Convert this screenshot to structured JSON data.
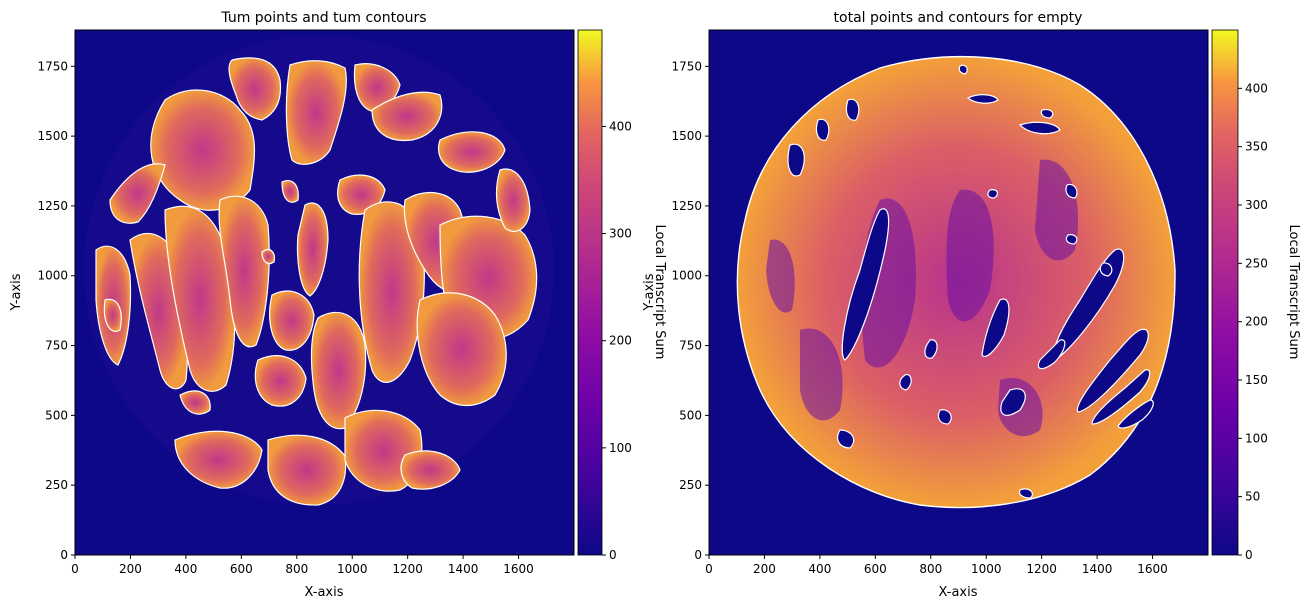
{
  "chart_data": [
    {
      "type": "heatmap",
      "title": "Tum points and tum contours",
      "xlabel": "X-axis",
      "ylabel": "Y-axis",
      "xlim": [
        0,
        1800
      ],
      "ylim": [
        0,
        1880
      ],
      "x_ticks": [
        0,
        200,
        400,
        600,
        800,
        1000,
        1200,
        1400,
        1600
      ],
      "y_ticks": [
        0,
        250,
        500,
        750,
        1000,
        1250,
        1500,
        1750
      ],
      "colormap": "plasma",
      "background_color": "#0d0887",
      "contour_color": "#ffffff",
      "colorbar": {
        "label": "Local Transcript Sum",
        "range": [
          0,
          490
        ],
        "ticks": [
          0,
          100,
          200,
          300,
          400
        ]
      },
      "tissue_region": {
        "center": [
          880,
          1020
        ],
        "radius": 850,
        "shape": "circle"
      }
    },
    {
      "type": "heatmap",
      "title": "total points and contours for empty",
      "xlabel": "X-axis",
      "ylabel": "Y-axis",
      "xlim": [
        0,
        1800
      ],
      "ylim": [
        0,
        1880
      ],
      "x_ticks": [
        0,
        200,
        400,
        600,
        800,
        1000,
        1200,
        1400,
        1600
      ],
      "y_ticks": [
        0,
        250,
        500,
        750,
        1000,
        1250,
        1500,
        1750
      ],
      "colormap": "plasma",
      "background_color": "#0d0887",
      "contour_color": "#ffffff",
      "colorbar": {
        "label": "Local Transcript Sum",
        "range": [
          0,
          450
        ],
        "ticks": [
          0,
          50,
          100,
          150,
          200,
          250,
          300,
          350,
          400
        ]
      },
      "tissue_region": {
        "center": [
          910,
          1020
        ],
        "radius": 850,
        "shape": "circle"
      }
    }
  ]
}
